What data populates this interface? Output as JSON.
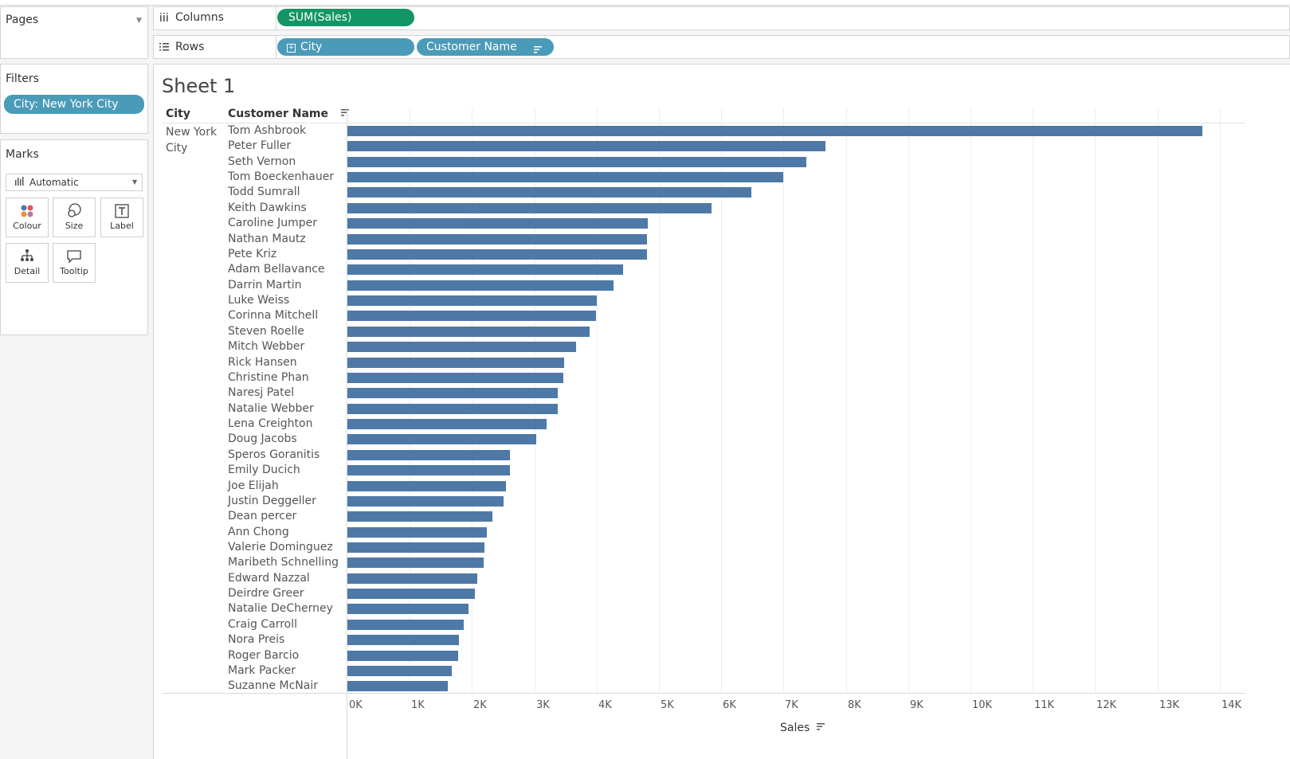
{
  "pages_card": {
    "title": "Pages"
  },
  "columns_shelf": {
    "label": "Columns",
    "pill": "SUM(Sales)"
  },
  "rows_shelf": {
    "label": "Rows",
    "pills": [
      "City",
      "Customer Name"
    ]
  },
  "filters_card": {
    "title": "Filters",
    "filter": "City: New York City"
  },
  "marks_card": {
    "title": "Marks",
    "mark_type": "Automatic",
    "buttons": [
      "Colour",
      "Size",
      "Label",
      "Detail",
      "Tooltip"
    ]
  },
  "sheet": {
    "title": "Sheet 1",
    "col_header_city": "City",
    "col_header_customer": "Customer Name",
    "city_value_line1": "New York",
    "city_value_line2": "City",
    "axis_title": "Sales"
  },
  "colors": {
    "bar": "#4e79a7",
    "green_pill": "#149566",
    "blue_pill": "#4a9bb8"
  },
  "chart_data": {
    "type": "bar",
    "orientation": "horizontal",
    "categories": [
      "Tom Ashbrook",
      "Peter Fuller",
      "Seth Vernon",
      "Tom Boeckenhauer",
      "Todd Sumrall",
      "Keith Dawkins",
      "Caroline Jumper",
      "Nathan Mautz",
      "Pete Kriz",
      "Adam Bellavance",
      "Darrin Martin",
      "Luke Weiss",
      "Corinna Mitchell",
      "Steven Roelle",
      "Mitch Webber",
      "Rick Hansen",
      "Christine Phan",
      "Naresj Patel",
      "Natalie Webber",
      "Lena Creighton",
      "Doug Jacobs",
      "Speros Goranitis",
      "Emily Ducich",
      "Joe Elijah",
      "Justin Deggeller",
      "Dean percer",
      "Ann Chong",
      "Valerie Dominguez",
      "Maribeth Schnelling",
      "Edward Nazzal",
      "Deirdre Greer",
      "Natalie DeCherney",
      "Craig Carroll",
      "Nora Preis",
      "Roger Barcio",
      "Mark Packer",
      "Suzanne McNair"
    ],
    "values": [
      13720,
      7670,
      7360,
      6990,
      6480,
      5840,
      4820,
      4810,
      4810,
      4420,
      4270,
      4000,
      3990,
      3890,
      3670,
      3480,
      3460,
      3370,
      3370,
      3200,
      3030,
      2610,
      2610,
      2550,
      2510,
      2330,
      2240,
      2200,
      2190,
      2080,
      2050,
      1950,
      1870,
      1790,
      1780,
      1680,
      1610
    ],
    "xlabel": "Sales",
    "xlim": [
      0,
      14000
    ],
    "xticks": [
      "0K",
      "1K",
      "2K",
      "3K",
      "4K",
      "5K",
      "6K",
      "7K",
      "8K",
      "9K",
      "10K",
      "11K",
      "12K",
      "13K",
      "14K"
    ],
    "grid": true
  }
}
